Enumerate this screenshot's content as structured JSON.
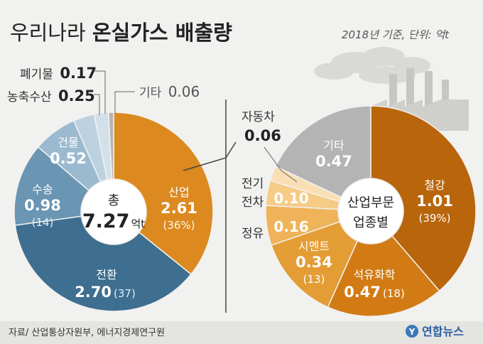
{
  "header": {
    "title_light": "우리나라 ",
    "title_bold": "온실가스 배출량",
    "subtitle": "2018년 기준, 단위: 억t"
  },
  "footer": {
    "source": "자료/ 산업통상자원부, 에너지경제연구원",
    "logo": "연합뉴스"
  },
  "colors": {
    "background": "#f1f1ef",
    "industry": "#dc8a20",
    "transform": "#3e6e90",
    "transport": "#6a95b3",
    "building": "#9bbad0",
    "agriculture": "#bdd2e1",
    "waste": "#d3e0ea",
    "other_left": "#b4b4b4",
    "steel": "#b8650c",
    "petrochem": "#d27b14",
    "cement": "#e49c35",
    "refinery": "#efb45a",
    "electric": "#f5cb86",
    "automobile": "#f9dfb3",
    "other_right": "#b4b4b4"
  },
  "chart_data": [
    {
      "type": "pie",
      "variant": "donut",
      "center": {
        "line1": "총",
        "line2_value": "7.27",
        "line2_unit": "억t"
      },
      "slices": [
        {
          "name": "산업",
          "value": 2.61,
          "pct_label": "(36%)"
        },
        {
          "name": "전환",
          "value": 2.7,
          "pct_label": "(37)"
        },
        {
          "name": "수송",
          "value": 0.98,
          "pct_label": "(14)"
        },
        {
          "name": "건물",
          "value": 0.52,
          "pct_label": ""
        },
        {
          "name": "농축수산",
          "value": 0.25,
          "pct_label": ""
        },
        {
          "name": "폐기물",
          "value": 0.17,
          "pct_label": ""
        },
        {
          "name": "기타",
          "value": 0.06,
          "pct_label": ""
        }
      ]
    },
    {
      "type": "pie",
      "variant": "donut",
      "center": {
        "line1": "산업부문",
        "line2": "업종별"
      },
      "slices": [
        {
          "name": "철강",
          "value": 1.01,
          "pct_label": "(39%)"
        },
        {
          "name": "석유화학",
          "value": 0.47,
          "pct_label": "(18)"
        },
        {
          "name": "시멘트",
          "value": 0.34,
          "pct_label": "(13)"
        },
        {
          "name": "정유",
          "value": 0.16,
          "pct_label": ""
        },
        {
          "name": "전기\n전차",
          "value": 0.1,
          "pct_label": ""
        },
        {
          "name": "자동차",
          "value": 0.06,
          "pct_label": ""
        },
        {
          "name": "기타",
          "value": 0.47,
          "pct_label": ""
        }
      ]
    }
  ]
}
